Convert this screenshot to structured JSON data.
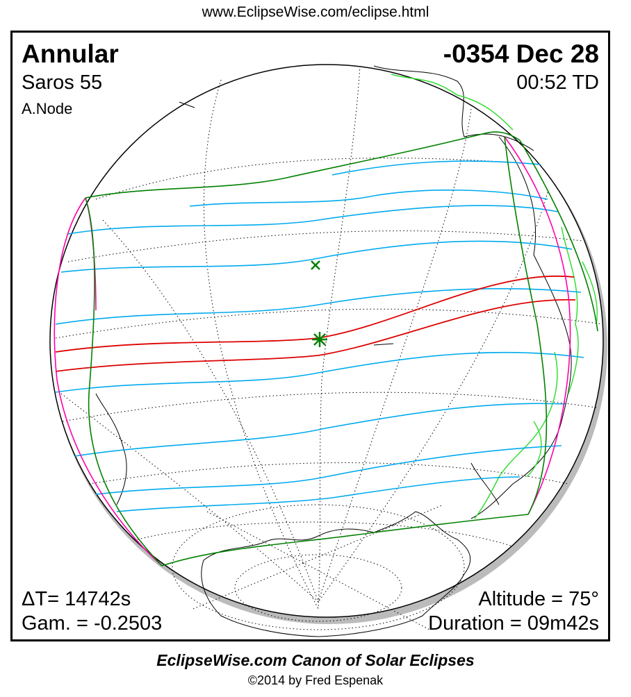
{
  "header_url": "www.EclipseWise.com/eclipse.html",
  "eclipse": {
    "type": "Annular",
    "saros": "Saros  55",
    "node": "A.Node",
    "date": "-0354 Dec 28",
    "time": "00:52 TD"
  },
  "stats": {
    "delta_t": "ΔT=  14742s",
    "gamma": "Gam. = -0.2503",
    "altitude": "Altitude = 75°",
    "duration": "Duration = 09m42s"
  },
  "footer": {
    "canon": "EclipseWise.com Canon of Solar Eclipses",
    "copyright": "©2014 by Fred Espenak"
  },
  "colors": {
    "penumbral_limits": "#008000",
    "rise_set_curves": "#ff00aa",
    "magnitude_curves": "#00aaee",
    "central_path": "#dd0000",
    "coastlines": "#000000",
    "borders": "#33dd33"
  },
  "markers": {
    "greatest_eclipse_icon": "green-asterisk",
    "subsolar_point_icon": "green-x"
  }
}
